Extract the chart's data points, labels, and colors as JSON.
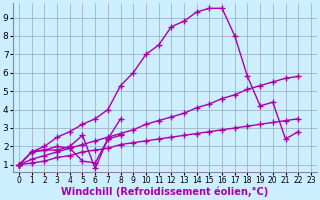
{
  "background_color": "#cceeff",
  "plot_bg_color": "#cceeff",
  "line_color": "#aa00aa",
  "marker": "+",
  "markersize": 4,
  "linewidth": 1.0,
  "xlabel": "Windchill (Refroidissement éolien,°C)",
  "xlabel_fontsize": 7,
  "tick_fontsize": 6.5,
  "xlim": [
    -0.5,
    23.5
  ],
  "ylim": [
    0.6,
    9.8
  ],
  "yticks": [
    1,
    2,
    3,
    4,
    5,
    6,
    7,
    8,
    9
  ],
  "xticks": [
    0,
    1,
    2,
    3,
    4,
    5,
    6,
    7,
    8,
    9,
    10,
    11,
    12,
    13,
    14,
    15,
    16,
    17,
    18,
    19,
    20,
    21,
    22,
    23
  ],
  "grid_color": "#99aabb",
  "series": [
    {
      "x": [
        0,
        1,
        2,
        3,
        4,
        5,
        6,
        7,
        8,
        9,
        10,
        11,
        12,
        13,
        14,
        15,
        16,
        17,
        18,
        19,
        20,
        21,
        22
      ],
      "y": [
        1.0,
        1.7,
        2.0,
        2.5,
        2.8,
        3.2,
        3.5,
        4.0,
        5.3,
        6.0,
        7.0,
        7.5,
        8.5,
        8.8,
        9.3,
        9.5,
        9.5,
        8.0,
        5.8,
        4.2,
        4.4,
        2.4,
        2.8
      ]
    },
    {
      "x": [
        0,
        1,
        2,
        3,
        4,
        5,
        6,
        7,
        8,
        9,
        10,
        11,
        12,
        13,
        14,
        15,
        16,
        17,
        18,
        19,
        20,
        21,
        22
      ],
      "y": [
        1.0,
        1.3,
        1.5,
        1.7,
        1.9,
        2.1,
        2.3,
        2.5,
        2.7,
        2.9,
        3.2,
        3.4,
        3.6,
        3.8,
        4.1,
        4.3,
        4.6,
        4.8,
        5.1,
        5.3,
        5.5,
        5.7,
        5.8
      ]
    },
    {
      "x": [
        0,
        1,
        2,
        3,
        4,
        5,
        6,
        7,
        8,
        9,
        10,
        11,
        12,
        13,
        14,
        15,
        16,
        17,
        18,
        19,
        20,
        21,
        22,
        23
      ],
      "y": [
        1.0,
        1.1,
        1.2,
        1.4,
        1.5,
        1.7,
        1.8,
        1.9,
        2.1,
        2.2,
        2.3,
        2.4,
        2.5,
        2.6,
        2.7,
        2.8,
        2.9,
        3.0,
        3.1,
        3.2,
        3.3,
        3.4,
        3.5,
        null
      ]
    },
    {
      "x": [
        0,
        1,
        2,
        3,
        4,
        5,
        6,
        7,
        8
      ],
      "y": [
        1.0,
        1.7,
        1.8,
        1.8,
        2.0,
        2.6,
        0.8,
        2.4,
        3.5
      ]
    },
    {
      "x": [
        0,
        1,
        2,
        3,
        4,
        5,
        6,
        7,
        8
      ],
      "y": [
        1.0,
        1.7,
        1.8,
        2.0,
        1.9,
        1.2,
        1.1,
        2.4,
        2.6
      ]
    }
  ]
}
